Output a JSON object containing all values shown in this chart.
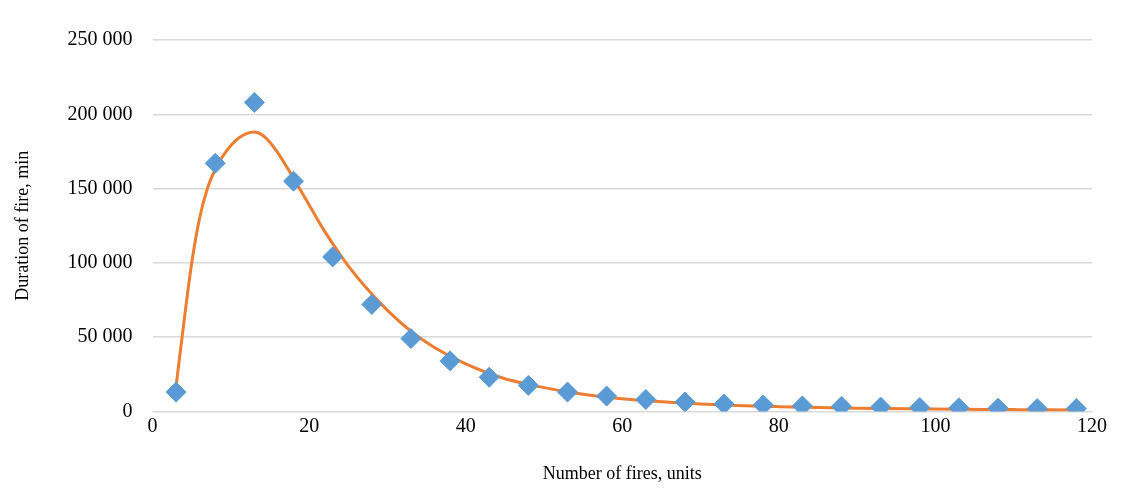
{
  "chart_data": {
    "type": "scatter",
    "xlabel": "Number of fires, units",
    "ylabel": "Duration of fire, min",
    "xlim": [
      0,
      120
    ],
    "xticks": [
      0,
      20,
      40,
      60,
      80,
      100,
      120
    ],
    "ylim": [
      0,
      250000
    ],
    "yticks": [
      {
        "value": 0,
        "label": "0"
      },
      {
        "value": 50000,
        "label": "50 000"
      },
      {
        "value": 100000,
        "label": "100 000"
      },
      {
        "value": 150000,
        "label": "150 000"
      },
      {
        "value": 200000,
        "label": "200 000"
      },
      {
        "value": 250000,
        "label": "250 000"
      }
    ],
    "grid": "y",
    "legend": false,
    "series": [
      {
        "type": "scatter",
        "marker": "diamond",
        "color": "#5b9bd5",
        "x": [
          3,
          8,
          13,
          18,
          23,
          28,
          33,
          38,
          43,
          48,
          53,
          58,
          63,
          68,
          73,
          78,
          83,
          88,
          93,
          98,
          103,
          108,
          113,
          118
        ],
        "values": [
          13000,
          167000,
          208000,
          155000,
          104000,
          72000,
          49000,
          34000,
          23000,
          17500,
          13000,
          10300,
          8000,
          6300,
          5000,
          4300,
          3700,
          3400,
          2900,
          2600,
          2400,
          2200,
          1900,
          1900
        ]
      },
      {
        "type": "line",
        "marker": "none",
        "color": "#ed7d31",
        "x": [
          3,
          4,
          5,
          6,
          7,
          8,
          9,
          10,
          11,
          12,
          13,
          14,
          15,
          16,
          18,
          20,
          22,
          25,
          28,
          30,
          33,
          36,
          40,
          45,
          50,
          55,
          60,
          70,
          80,
          90,
          100,
          110,
          118
        ],
        "values": [
          17000,
          60000,
          100000,
          130000,
          150000,
          163000,
          172000,
          179000,
          184000,
          187000,
          188000,
          186000,
          181000,
          174000,
          157000,
          139000,
          121000,
          98000,
          79000,
          68000,
          54000,
          43000,
          32000,
          22000,
          16000,
          11500,
          8500,
          5000,
          3200,
          2200,
          1600,
          1200,
          1000
        ]
      }
    ]
  }
}
